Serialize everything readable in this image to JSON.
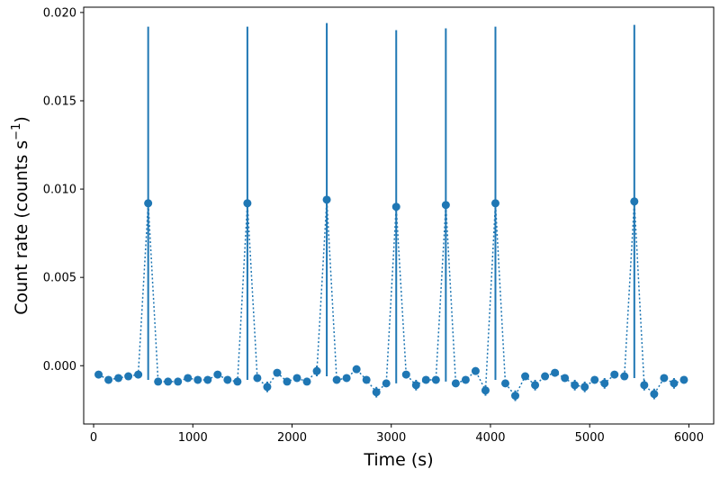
{
  "chart_data": {
    "type": "scatter",
    "title": "",
    "xlabel": "Time (s)",
    "ylabel_main": "Count rate (counts s",
    "ylabel_sup": "−1",
    "ylabel_close": ")",
    "xlim": [
      -100,
      6250
    ],
    "ylim": [
      -0.0033,
      0.0203
    ],
    "xticks": [
      0,
      1000,
      2000,
      3000,
      4000,
      5000,
      6000
    ],
    "yticks": [
      0.0,
      0.005,
      0.01,
      0.015,
      0.02
    ],
    "ytick_labels": [
      "0.000",
      "0.005",
      "0.010",
      "0.015",
      "0.020"
    ],
    "grid": false,
    "color": "#1f77b4",
    "line_style": "dotted",
    "series": [
      {
        "x": [
          50,
          150,
          250,
          350,
          450,
          550,
          650,
          750,
          850,
          950,
          1050,
          1150,
          1250,
          1350,
          1450,
          1550,
          1650,
          1750,
          1850,
          1950,
          2050,
          2150,
          2250,
          2350,
          2450,
          2550,
          2650,
          2750,
          2850,
          2950,
          3050,
          3150,
          3250,
          3350,
          3450,
          3550,
          3650,
          3750,
          3850,
          3950,
          4050,
          4150,
          4250,
          4350,
          4450,
          4550,
          4650,
          4750,
          4850,
          4950,
          5050,
          5150,
          5250,
          5350,
          5450,
          5550,
          5650,
          5750,
          5850,
          5950
        ],
        "y": [
          -0.0005,
          -0.0008,
          -0.0007,
          -0.0006,
          -0.0005,
          0.0092,
          -0.0009,
          -0.0009,
          -0.0009,
          -0.0007,
          -0.0008,
          -0.0008,
          -0.0005,
          -0.0008,
          -0.0009,
          0.0092,
          -0.0007,
          -0.0012,
          -0.0004,
          -0.0009,
          -0.0007,
          -0.0009,
          -0.0003,
          0.0094,
          -0.0008,
          -0.0007,
          -0.0002,
          -0.0008,
          -0.0015,
          -0.001,
          0.009,
          -0.0005,
          -0.0011,
          -0.0008,
          -0.0008,
          0.0091,
          -0.001,
          -0.0008,
          -0.0003,
          -0.0014,
          0.0092,
          -0.001,
          -0.0017,
          -0.0006,
          -0.0011,
          -0.0006,
          -0.0004,
          -0.0007,
          -0.0011,
          -0.0012,
          -0.0008,
          -0.001,
          -0.0005,
          -0.0006,
          0.0093,
          -0.0011,
          -0.0016,
          -0.0007,
          -0.001,
          -0.0008
        ],
        "yerr": [
          0.0002,
          0.0002,
          0.0002,
          0.0002,
          0.0002,
          0.01,
          0.0002,
          0.0002,
          0.0002,
          0.0002,
          0.0002,
          0.0002,
          0.0002,
          0.0002,
          0.0002,
          0.01,
          0.0002,
          0.0003,
          0.0002,
          0.0002,
          0.0002,
          0.0002,
          0.0003,
          0.01,
          0.0002,
          0.0002,
          0.0002,
          0.0002,
          0.0003,
          0.0002,
          0.01,
          0.0002,
          0.0003,
          0.0002,
          0.0002,
          0.01,
          0.0002,
          0.0002,
          0.0002,
          0.0003,
          0.01,
          0.0002,
          0.0003,
          0.0002,
          0.0003,
          0.0002,
          0.0002,
          0.0002,
          0.0003,
          0.0003,
          0.0002,
          0.0003,
          0.0002,
          0.0002,
          0.01,
          0.0003,
          0.0003,
          0.0002,
          0.0003,
          0.0002
        ]
      }
    ]
  }
}
